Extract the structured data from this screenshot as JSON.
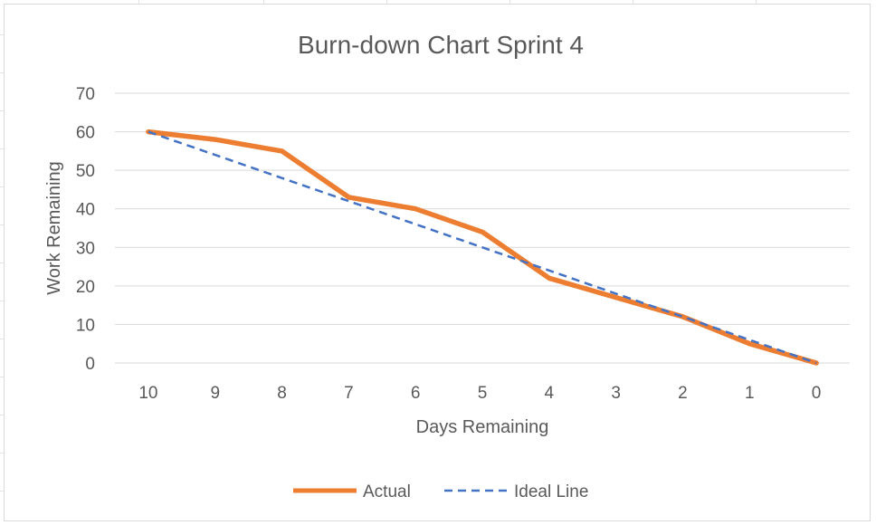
{
  "chart_data": {
    "type": "line",
    "title": "Burn-down Chart Sprint 4",
    "xlabel": "Days Remaining",
    "ylabel": "Work Remaining",
    "categories": [
      "10",
      "9",
      "8",
      "7",
      "6",
      "5",
      "4",
      "3",
      "2",
      "1",
      "0"
    ],
    "ylim": [
      0,
      70
    ],
    "yticks": [
      "0",
      "10",
      "20",
      "30",
      "40",
      "50",
      "60",
      "70"
    ],
    "grid": true,
    "legend_position": "bottom",
    "series": [
      {
        "name": "Actual",
        "values": [
          60,
          58,
          55,
          43,
          40,
          34,
          22,
          17,
          12,
          5,
          0
        ],
        "color": "#ED7D31",
        "style": "solid"
      },
      {
        "name": "Ideal Line",
        "values": [
          60,
          54,
          48,
          42,
          36,
          30,
          24,
          18,
          12,
          6,
          0
        ],
        "color": "#4472C4",
        "style": "dashed"
      }
    ]
  }
}
